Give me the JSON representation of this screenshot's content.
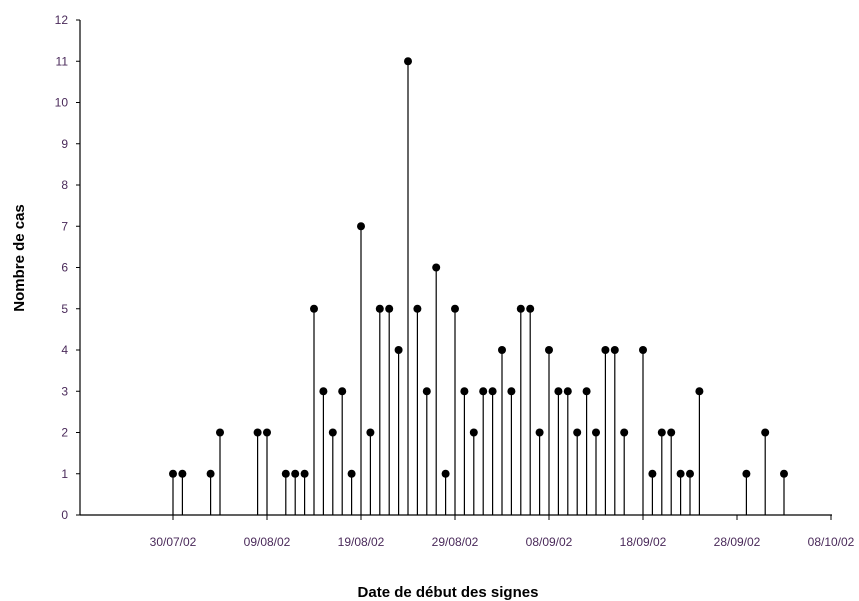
{
  "chart_data": {
    "type": "scatter",
    "style": "stem plot (vertical line from 0 to each point, filled circle marker)",
    "xlabel": "Date de début des signes",
    "ylabel": "Nombre de cas",
    "ylim": [
      0,
      12
    ],
    "y_ticks": [
      0,
      1,
      2,
      3,
      4,
      5,
      6,
      7,
      8,
      9,
      10,
      11,
      12
    ],
    "x_range": [
      "2002-07-30",
      "2002-10-08"
    ],
    "x_ticks": [
      "2002-07-30",
      "2002-08-09",
      "2002-08-19",
      "2002-08-29",
      "2002-09-08",
      "2002-09-18",
      "2002-09-28",
      "2002-10-08"
    ],
    "x_tick_labels": [
      "30/07/02",
      "09/08/02",
      "19/08/02",
      "29/08/02",
      "08/09/02",
      "18/09/02",
      "28/09/02",
      "08/10/02"
    ],
    "grid": false,
    "legend": "none",
    "colors": {
      "stem": "#000000",
      "marker": "#000000",
      "axis": "#000000",
      "tick_text": "#4a2a5a"
    },
    "series": [
      {
        "points": [
          {
            "x": "2002-07-30",
            "y": 1
          },
          {
            "x": "2002-07-31",
            "y": 1
          },
          {
            "x": "2002-08-03",
            "y": 1
          },
          {
            "x": "2002-08-04",
            "y": 2
          },
          {
            "x": "2002-08-08",
            "y": 2
          },
          {
            "x": "2002-08-09",
            "y": 2
          },
          {
            "x": "2002-08-11",
            "y": 1
          },
          {
            "x": "2002-08-12",
            "y": 1
          },
          {
            "x": "2002-08-13",
            "y": 1
          },
          {
            "x": "2002-08-14",
            "y": 5
          },
          {
            "x": "2002-08-15",
            "y": 3
          },
          {
            "x": "2002-08-16",
            "y": 2
          },
          {
            "x": "2002-08-17",
            "y": 3
          },
          {
            "x": "2002-08-18",
            "y": 1
          },
          {
            "x": "2002-08-19",
            "y": 7
          },
          {
            "x": "2002-08-20",
            "y": 2
          },
          {
            "x": "2002-08-21",
            "y": 5
          },
          {
            "x": "2002-08-22",
            "y": 5
          },
          {
            "x": "2002-08-23",
            "y": 4
          },
          {
            "x": "2002-08-24",
            "y": 11
          },
          {
            "x": "2002-08-25",
            "y": 5
          },
          {
            "x": "2002-08-26",
            "y": 3
          },
          {
            "x": "2002-08-27",
            "y": 6
          },
          {
            "x": "2002-08-28",
            "y": 1
          },
          {
            "x": "2002-08-29",
            "y": 5
          },
          {
            "x": "2002-08-30",
            "y": 3
          },
          {
            "x": "2002-08-31",
            "y": 2
          },
          {
            "x": "2002-09-01",
            "y": 3
          },
          {
            "x": "2002-09-02",
            "y": 3
          },
          {
            "x": "2002-09-03",
            "y": 4
          },
          {
            "x": "2002-09-04",
            "y": 3
          },
          {
            "x": "2002-09-05",
            "y": 5
          },
          {
            "x": "2002-09-06",
            "y": 5
          },
          {
            "x": "2002-09-07",
            "y": 2
          },
          {
            "x": "2002-09-08",
            "y": 4
          },
          {
            "x": "2002-09-09",
            "y": 3
          },
          {
            "x": "2002-09-10",
            "y": 3
          },
          {
            "x": "2002-09-11",
            "y": 2
          },
          {
            "x": "2002-09-12",
            "y": 3
          },
          {
            "x": "2002-09-13",
            "y": 2
          },
          {
            "x": "2002-09-14",
            "y": 4
          },
          {
            "x": "2002-09-15",
            "y": 4
          },
          {
            "x": "2002-09-16",
            "y": 2
          },
          {
            "x": "2002-09-18",
            "y": 4
          },
          {
            "x": "2002-09-19",
            "y": 1
          },
          {
            "x": "2002-09-20",
            "y": 2
          },
          {
            "x": "2002-09-21",
            "y": 2
          },
          {
            "x": "2002-09-22",
            "y": 1
          },
          {
            "x": "2002-09-23",
            "y": 1
          },
          {
            "x": "2002-09-24",
            "y": 3
          },
          {
            "x": "2002-09-29",
            "y": 1
          },
          {
            "x": "2002-10-01",
            "y": 2
          },
          {
            "x": "2002-10-03",
            "y": 1
          }
        ]
      }
    ]
  }
}
